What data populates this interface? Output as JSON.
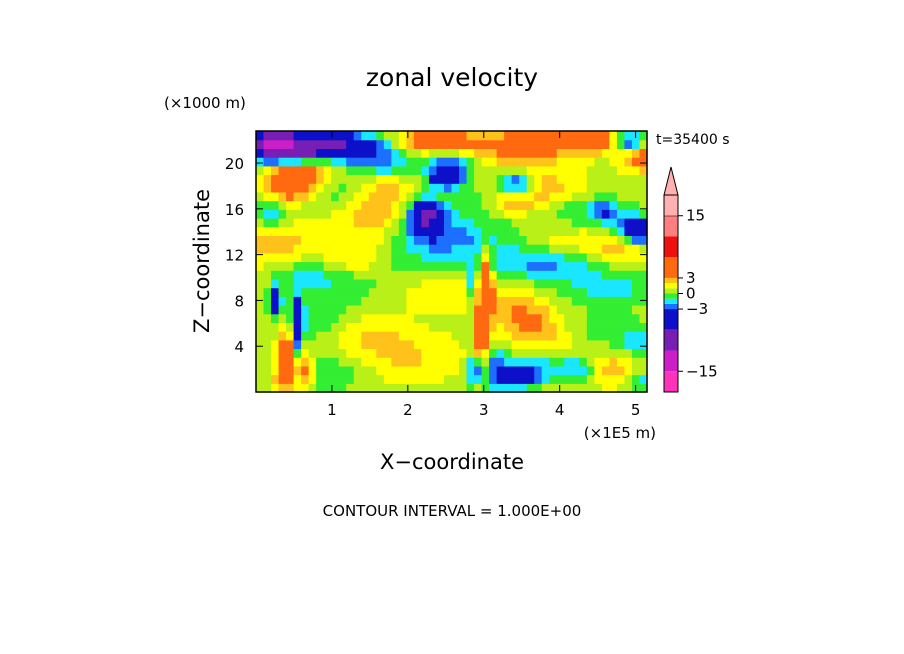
{
  "chart_data": {
    "type": "heatmap",
    "title": "zonal velocity",
    "time_label": "t=35400 s",
    "xlabel": "X−coordinate",
    "ylabel": "Z−coordinate",
    "x_unit": "(×1E5 m)",
    "y_unit": "(×1000 m)",
    "footer": "CONTOUR INTERVAL = 1.000E+00",
    "xlim": [
      0,
      5.15
    ],
    "ylim": [
      0,
      22.8
    ],
    "x_ticks": [
      {
        "value": 1,
        "label": "1"
      },
      {
        "value": 2,
        "label": "2"
      },
      {
        "value": 3,
        "label": "3"
      },
      {
        "value": 4,
        "label": "4"
      },
      {
        "value": 5,
        "label": "5"
      }
    ],
    "y_ticks": [
      {
        "value": 4,
        "label": "4"
      },
      {
        "value": 8,
        "label": "8"
      },
      {
        "value": 12,
        "label": "12"
      },
      {
        "value": 16,
        "label": "16"
      },
      {
        "value": 20,
        "label": "20"
      }
    ],
    "colorbar": {
      "range": [
        -19,
        19
      ],
      "levels": [
        {
          "lo": -19,
          "hi": -15,
          "color": "#ff33bb"
        },
        {
          "lo": -15,
          "hi": -11,
          "color": "#cc1fc8"
        },
        {
          "lo": -11,
          "hi": -7,
          "color": "#771fb4"
        },
        {
          "lo": -7,
          "hi": -3,
          "color": "#0d10c8"
        },
        {
          "lo": -3,
          "hi": -2,
          "color": "#1c6fff"
        },
        {
          "lo": -2,
          "hi": -1,
          "color": "#1ae6ff"
        },
        {
          "lo": -1,
          "hi": 0,
          "color": "#33ee33"
        },
        {
          "lo": 0,
          "hi": 1,
          "color": "#b8f018"
        },
        {
          "lo": 1,
          "hi": 2,
          "color": "#ffff00"
        },
        {
          "lo": 2,
          "hi": 3,
          "color": "#ffc21a"
        },
        {
          "lo": 3,
          "hi": 7,
          "color": "#ff6a10"
        },
        {
          "lo": 7,
          "hi": 11,
          "color": "#ee0f0f"
        },
        {
          "lo": 11,
          "hi": 15,
          "color": "#ff7f80"
        },
        {
          "lo": 15,
          "hi": 19,
          "color": "#ffb0b0"
        }
      ],
      "tick_labels": [
        {
          "value": 15,
          "label": "15"
        },
        {
          "value": 3,
          "label": "3"
        },
        {
          "value": 0,
          "label": "0"
        },
        {
          "value": -3,
          "label": "−3"
        },
        {
          "value": -15,
          "label": "−15"
        }
      ]
    },
    "field": {
      "nx": 52,
      "nz": 30,
      "background": 0.6,
      "features": [
        {
          "x": 0.45,
          "z": 21.5,
          "u": -9,
          "sx": 0.35,
          "sz": 1.0
        },
        {
          "x": 0.1,
          "z": 21.8,
          "u": -6,
          "sx": 0.2,
          "sz": 0.8
        },
        {
          "x": 0.95,
          "z": 21.6,
          "u": -5,
          "sx": 0.35,
          "sz": 0.8
        },
        {
          "x": 1.4,
          "z": 21.2,
          "u": -3.5,
          "sx": 0.3,
          "sz": 0.9
        },
        {
          "x": 1.75,
          "z": 19.8,
          "u": -2.5,
          "sx": 0.25,
          "sz": 0.7
        },
        {
          "x": 2.35,
          "z": 22.0,
          "u": 5,
          "sx": 0.3,
          "sz": 0.6
        },
        {
          "x": 2.55,
          "z": 19.8,
          "u": -3.5,
          "sx": 0.2,
          "sz": 0.8
        },
        {
          "x": 2.5,
          "z": 18.7,
          "u": -6,
          "sx": 0.15,
          "sz": 0.6
        },
        {
          "x": 3.5,
          "z": 21.5,
          "u": 3.5,
          "sx": 0.5,
          "sz": 1.2
        },
        {
          "x": 4.5,
          "z": 22.0,
          "u": 6,
          "sx": 0.3,
          "sz": 0.6
        },
        {
          "x": 4.9,
          "z": 21.9,
          "u": -7,
          "sx": 0.18,
          "sz": 0.6
        },
        {
          "x": 5.1,
          "z": 20.8,
          "u": 4,
          "sx": 0.2,
          "sz": 1.0
        },
        {
          "x": 0.45,
          "z": 18.3,
          "u": 5,
          "sx": 0.2,
          "sz": 1.0
        },
        {
          "x": 0.75,
          "z": 19.3,
          "u": 3,
          "sx": 0.3,
          "sz": 1.0
        },
        {
          "x": 1.1,
          "z": 18.0,
          "u": -1.6,
          "sx": 0.3,
          "sz": 1.5
        },
        {
          "x": 1.7,
          "z": 17.0,
          "u": 2.5,
          "sx": 0.3,
          "sz": 1.5
        },
        {
          "x": 2.2,
          "z": 15.2,
          "u": -3,
          "sx": 0.3,
          "sz": 1.5
        },
        {
          "x": 2.25,
          "z": 15.6,
          "u": -7,
          "sx": 0.12,
          "sz": 0.8
        },
        {
          "x": 2.6,
          "z": 13.5,
          "u": -2.5,
          "sx": 0.5,
          "sz": 1.2
        },
        {
          "x": 1.5,
          "z": 14.5,
          "u": 1.5,
          "sx": 0.4,
          "sz": 1.5
        },
        {
          "x": 0.2,
          "z": 15.5,
          "u": -2.5,
          "sx": 0.15,
          "sz": 0.8
        },
        {
          "x": 0.1,
          "z": 12.5,
          "u": 1.5,
          "sx": 0.25,
          "sz": 1.5
        },
        {
          "x": 0.6,
          "z": 13.0,
          "u": 1.2,
          "sx": 0.3,
          "sz": 1.5
        },
        {
          "x": 3.2,
          "z": 17.0,
          "u": -1.5,
          "sx": 0.3,
          "sz": 1.5
        },
        {
          "x": 3.45,
          "z": 18.2,
          "u": -4,
          "sx": 0.15,
          "sz": 0.8
        },
        {
          "x": 3.35,
          "z": 16.5,
          "u": 2.5,
          "sx": 0.2,
          "sz": 0.8
        },
        {
          "x": 3.75,
          "z": 17.5,
          "u": 2.5,
          "sx": 0.4,
          "sz": 1.2
        },
        {
          "x": 3.7,
          "z": 11.5,
          "u": -2.5,
          "sx": 0.5,
          "sz": 1.0
        },
        {
          "x": 4.0,
          "z": 16.0,
          "u": -0.7,
          "sx": 0.3,
          "sz": 1.0
        },
        {
          "x": 4.4,
          "z": 16.0,
          "u": -1.5,
          "sx": 0.35,
          "sz": 1.2
        },
        {
          "x": 4.6,
          "z": 15.8,
          "u": -3.5,
          "sx": 0.1,
          "sz": 0.6
        },
        {
          "x": 4.9,
          "z": 14.5,
          "u": -4,
          "sx": 0.15,
          "sz": 0.8
        },
        {
          "x": 5.05,
          "z": 14.0,
          "u": -6,
          "sx": 0.1,
          "sz": 0.8
        },
        {
          "x": 4.85,
          "z": 12.5,
          "u": 1.8,
          "sx": 0.3,
          "sz": 1.0
        },
        {
          "x": 4.2,
          "z": 10.0,
          "u": -1.2,
          "sx": 0.5,
          "sz": 1.5
        },
        {
          "x": 4.8,
          "z": 9.0,
          "u": -1.5,
          "sx": 0.35,
          "sz": 1.0
        },
        {
          "x": 4.2,
          "z": 13.0,
          "u": 1.5,
          "sx": 0.4,
          "sz": 1.0
        },
        {
          "x": 0.6,
          "z": 10.5,
          "u": -1.4,
          "sx": 0.4,
          "sz": 1.0
        },
        {
          "x": 1.0,
          "z": 9.0,
          "u": -1.2,
          "sx": 0.4,
          "sz": 1.5
        },
        {
          "x": 2.0,
          "z": 11.0,
          "u": -1.1,
          "sx": 0.6,
          "sz": 1.5
        },
        {
          "x": 1.3,
          "z": 11.5,
          "u": 1.8,
          "sx": 0.3,
          "sz": 1.0
        },
        {
          "x": 2.4,
          "z": 9.0,
          "u": 1.4,
          "sx": 0.4,
          "sz": 1.2
        },
        {
          "x": 3.3,
          "z": 8.0,
          "u": 1.6,
          "sx": 0.3,
          "sz": 1.0
        },
        {
          "x": 0.25,
          "z": 8.0,
          "u": -6,
          "sx": 0.06,
          "sz": 0.8
        },
        {
          "x": 0.55,
          "z": 6.0,
          "u": -7,
          "sx": 0.05,
          "sz": 1.5
        },
        {
          "x": 0.4,
          "z": 3.5,
          "u": 4,
          "sx": 0.08,
          "sz": 1.5
        },
        {
          "x": 0.65,
          "z": 2.0,
          "u": 4,
          "sx": 0.08,
          "sz": 1.0
        },
        {
          "x": 0.35,
          "z": 1.0,
          "u": 3,
          "sx": 0.1,
          "sz": 0.8
        },
        {
          "x": 0.9,
          "z": 6.0,
          "u": -1.5,
          "sx": 0.3,
          "sz": 1.2
        },
        {
          "x": 1.4,
          "z": 5.0,
          "u": 1.6,
          "sx": 0.4,
          "sz": 1.5
        },
        {
          "x": 1.0,
          "z": 2.0,
          "u": -1.5,
          "sx": 0.4,
          "sz": 1.5
        },
        {
          "x": 2.0,
          "z": 3.0,
          "u": 1.5,
          "sx": 0.5,
          "sz": 1.5
        },
        {
          "x": 2.9,
          "z": 2.0,
          "u": -6,
          "sx": 0.06,
          "sz": 1.0
        },
        {
          "x": 2.95,
          "z": 4.0,
          "u": 5,
          "sx": 0.05,
          "sz": 2.5
        },
        {
          "x": 3.05,
          "z": 8.0,
          "u": 4,
          "sx": 0.05,
          "sz": 2.5
        },
        {
          "x": 3.0,
          "z": 10.5,
          "u": 3,
          "sx": 0.05,
          "sz": 1.5
        },
        {
          "x": 2.85,
          "z": 9.5,
          "u": -2.5,
          "sx": 0.05,
          "sz": 1.5
        },
        {
          "x": 3.15,
          "z": 2.0,
          "u": -3,
          "sx": 0.15,
          "sz": 1.5
        },
        {
          "x": 3.5,
          "z": 1.3,
          "u": -4,
          "sx": 0.18,
          "sz": 0.7
        },
        {
          "x": 3.7,
          "z": 2.5,
          "u": -2.5,
          "sx": 0.3,
          "sz": 1.0
        },
        {
          "x": 3.6,
          "z": 6.0,
          "u": 2.5,
          "sx": 0.3,
          "sz": 1.5
        },
        {
          "x": 4.0,
          "z": 4.0,
          "u": 1.5,
          "sx": 0.4,
          "sz": 1.5
        },
        {
          "x": 4.4,
          "z": 5.0,
          "u": -1.5,
          "sx": 0.4,
          "sz": 1.5
        },
        {
          "x": 4.7,
          "z": 2.0,
          "u": 2.2,
          "sx": 0.3,
          "sz": 1.0
        },
        {
          "x": 4.25,
          "z": 2.0,
          "u": -3,
          "sx": 0.2,
          "sz": 0.8
        },
        {
          "x": 5.05,
          "z": 4.5,
          "u": -2.5,
          "sx": 0.15,
          "sz": 1.0
        },
        {
          "x": 5.05,
          "z": 1.0,
          "u": -2.5,
          "sx": 0.12,
          "sz": 0.8
        }
      ]
    }
  }
}
